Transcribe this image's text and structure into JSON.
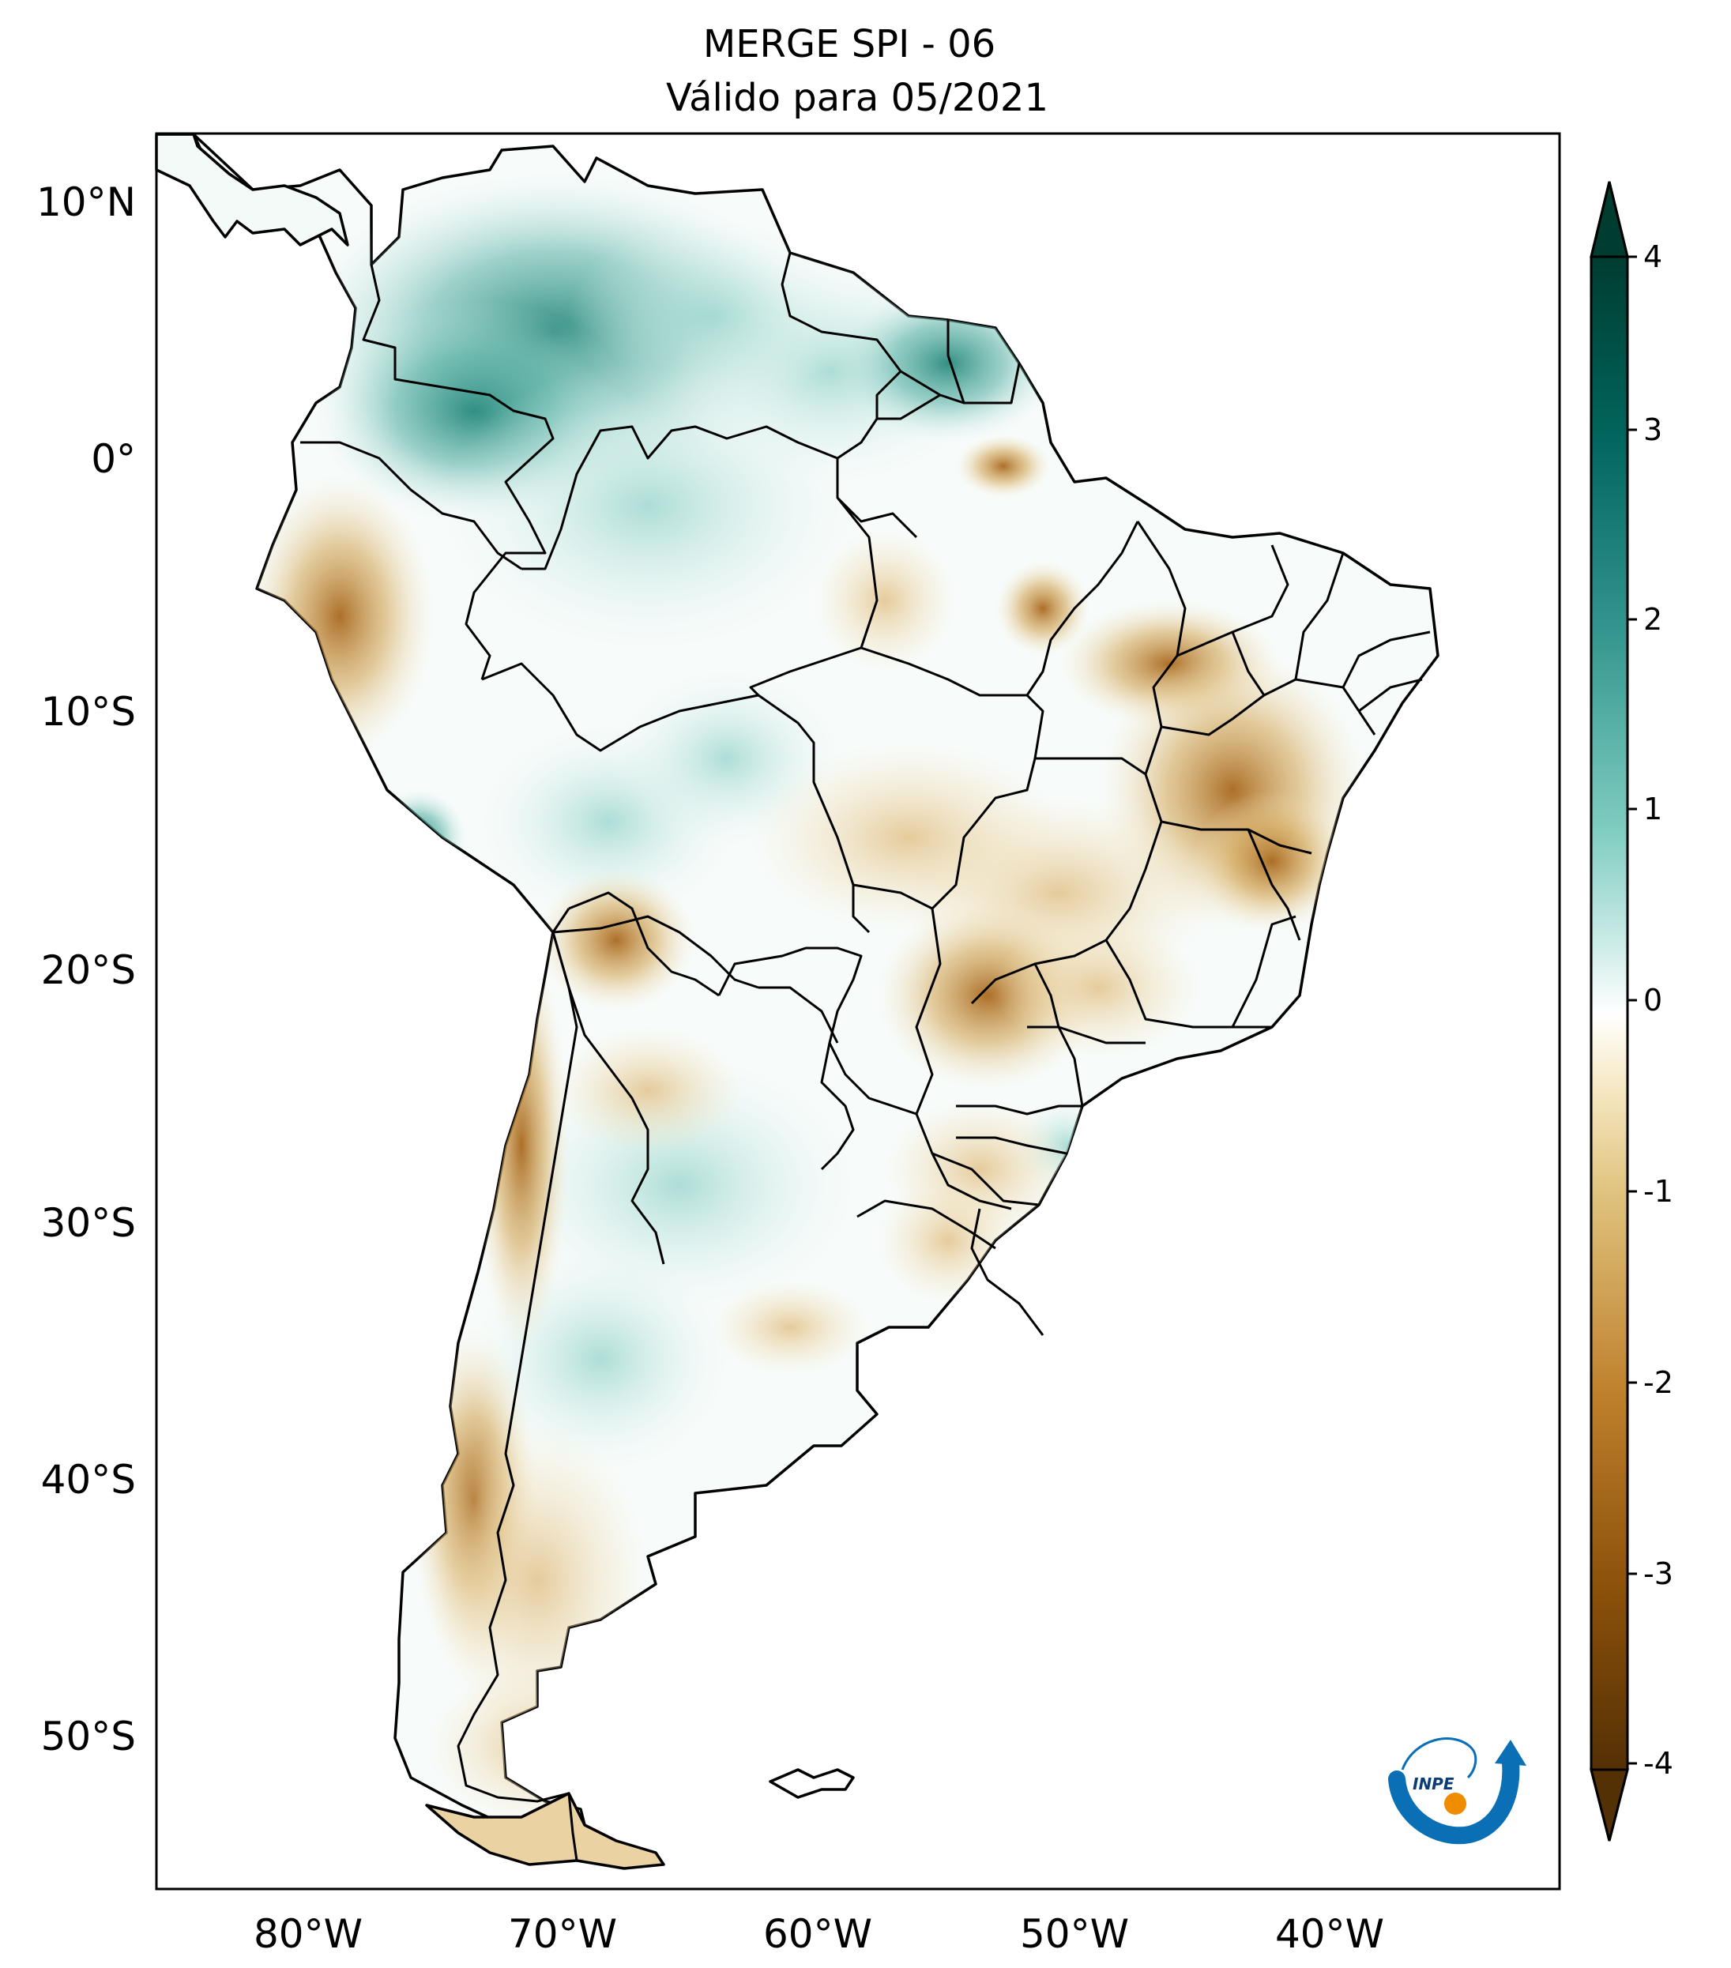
{
  "title": {
    "line1": "MERGE   SPI - 06",
    "line2": "Válido para 05/2021"
  },
  "axes": {
    "lat_labels": [
      "10°N",
      "0°",
      "10°S",
      "20°S",
      "30°S",
      "40°S",
      "50°S"
    ],
    "lon_labels": [
      "80°W",
      "70°W",
      "60°W",
      "50°W",
      "40°W"
    ]
  },
  "colorbar": {
    "ticks": [
      "4",
      "3",
      "2",
      "1",
      "0",
      "-1",
      "-2",
      "-3",
      "-4"
    ],
    "range": [
      -4,
      4
    ],
    "colors": {
      "max": "#003c30",
      "high": "#35978f",
      "mid_high": "#c7eae5",
      "zero": "#ffffff",
      "mid_low": "#f6e8c3",
      "low": "#bf812d",
      "min": "#543005"
    }
  },
  "logo": {
    "text": "INPE",
    "colors": {
      "arrow": "#0a6fb5",
      "sun": "#f08c00"
    }
  }
}
